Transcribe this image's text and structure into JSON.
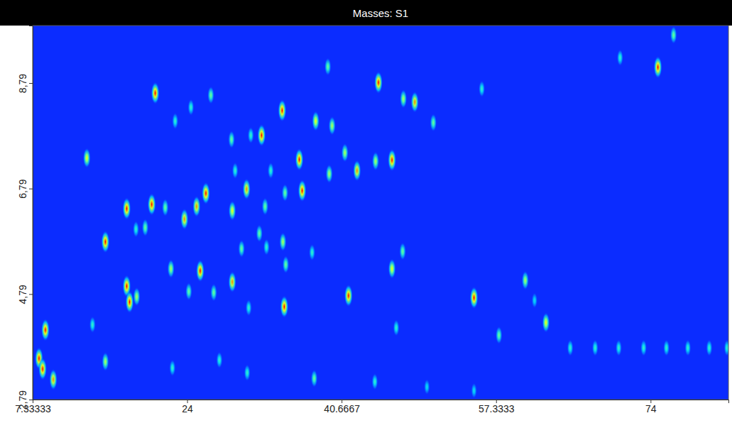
{
  "chart_data": {
    "type": "scatter",
    "title": "Masses: S1",
    "x": [
      20.56,
      32.03,
      34.25,
      44.64,
      48.56,
      47.33,
      37.87,
      39.64,
      36.1,
      42.33,
      46.1,
      41.02,
      44.33,
      36.41,
      39.33,
      30.41,
      26.02,
      25.02,
      23.71,
      20.18,
      17.48,
      21.64,
      19.48,
      18.48,
      15.18,
      13.18,
      28.87,
      32.41,
      34.56,
      31.79,
      29.87,
      34.33,
      37.48,
      34.64,
      32.56,
      22.25,
      25.41,
      28.87,
      26.87,
      24.18,
      17.48,
      17.79,
      18.56,
      34.48,
      41.41,
      30.64,
      54.95,
      60.48,
      62.71,
      57.64,
      8.71,
      13.79,
      15.18,
      22.41,
      27.48,
      30.48,
      37.71,
      44.25,
      46.56,
      49.87,
      54.95,
      39.18,
      55.79,
      50.56,
      74.79,
      76.48,
      70.71,
      47.25,
      46.1,
      26.56,
      22.71,
      24.41,
      28.79,
      30.87,
      33.02,
      29.18,
      65.33,
      68.02,
      70.56,
      73.25,
      75.71,
      78.02,
      80.33,
      82.25,
      61.48,
      8.02,
      9.56,
      8.41
    ],
    "values": [
      8.6,
      7.8,
      8.27,
      8.8,
      8.43,
      8.49,
      8.07,
      7.98,
      7.34,
      7.13,
      7.33,
      7.47,
      7.31,
      6.75,
      7.07,
      6.78,
      6.7,
      6.45,
      6.21,
      6.49,
      6.41,
      6.43,
      6.05,
      6.02,
      5.78,
      7.37,
      6.37,
      6.45,
      6.71,
      5.94,
      5.65,
      5.78,
      5.58,
      5.35,
      5.68,
      5.27,
      5.23,
      5.02,
      4.82,
      4.84,
      4.94,
      4.64,
      4.74,
      4.55,
      4.76,
      4.53,
      4.72,
      5.05,
      4.25,
      4.01,
      4.11,
      4.21,
      3.51,
      3.39,
      3.54,
      3.3,
      3.19,
      3.13,
      4.15,
      3.03,
      2.96,
      9.1,
      8.68,
      8.04,
      9.09,
      9.7,
      9.27,
      5.6,
      5.27,
      8.56,
      8.07,
      8.33,
      7.72,
      7.8,
      7.13,
      7.13,
      3.77,
      3.77,
      3.77,
      3.77,
      3.77,
      3.77,
      3.77,
      3.77,
      4.67,
      3.57,
      3.17,
      3.37
    ],
    "intensity": [
      1,
      1,
      1,
      1,
      0.9,
      0.7,
      0.8,
      0.7,
      1,
      0.9,
      1,
      0.7,
      0.7,
      1,
      0.7,
      0.9,
      1,
      0.9,
      0.9,
      1,
      1,
      0.6,
      0.6,
      0.5,
      1,
      0.8,
      0.8,
      0.6,
      0.6,
      0.6,
      0.6,
      0.7,
      0.5,
      0.6,
      0.5,
      0.7,
      1,
      0.9,
      0.6,
      0.6,
      1,
      1,
      0.7,
      1,
      1,
      0.5,
      1,
      0.7,
      0.8,
      0.6,
      1,
      0.5,
      0.7,
      0.5,
      0.5,
      0.5,
      0.6,
      0.5,
      0.5,
      0.4,
      0.4,
      0.6,
      0.5,
      0.6,
      1,
      0.6,
      0.5,
      0.6,
      0.8,
      0.6,
      0.5,
      0.5,
      0.6,
      0.5,
      0.5,
      0.5,
      0.5,
      0.5,
      0.5,
      0.5,
      0.5,
      0.5,
      0.5,
      0.5,
      0.4,
      1,
      0.9,
      1
    ],
    "intensity_lim": [
      0,
      1
    ],
    "xlim": [
      7.33333,
      82.4
    ],
    "xticks": [
      7.33333,
      24,
      40.6667,
      57.3333,
      74
    ],
    "ylim": [
      2.79,
      9.88
    ],
    "yticks": [
      {
        "value": 2.79,
        "label": "2,79"
      },
      {
        "value": 4.79,
        "label": "4,79"
      },
      {
        "value": 6.79,
        "label": "6,79"
      },
      {
        "value": 8.79,
        "label": "8,79"
      }
    ],
    "grid": false
  }
}
